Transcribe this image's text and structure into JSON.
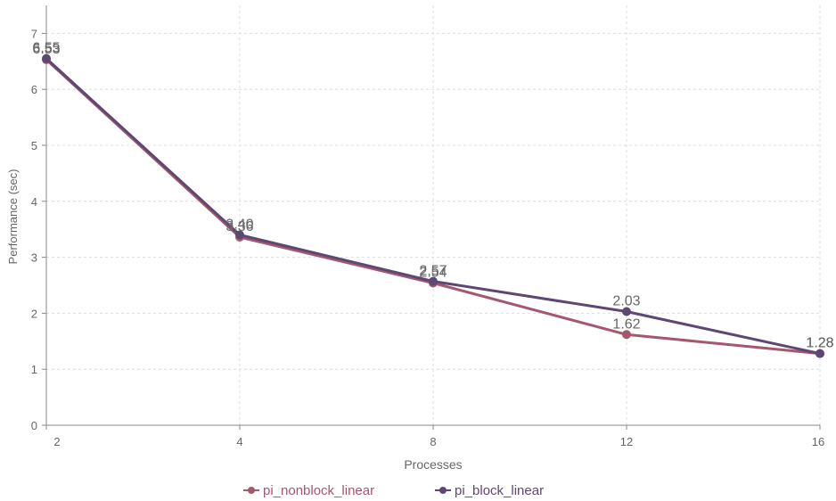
{
  "chart_data": {
    "type": "line",
    "title": "",
    "xlabel": "Processes",
    "ylabel": "Performance (sec)",
    "categories": [
      "2",
      "4",
      "8",
      "12",
      "16"
    ],
    "ylim": [
      0,
      7.5
    ],
    "y_ticks": [
      0,
      1,
      2,
      3,
      4,
      5,
      6,
      7
    ],
    "grid": true,
    "legend_position": "bottom-center",
    "series": [
      {
        "name": "pi_nonblock_linear",
        "values": [
          6.53,
          3.36,
          2.54,
          1.62,
          1.28
        ],
        "labels": [
          "6.53",
          "3.36",
          "2.54",
          "1.62",
          "1.28"
        ],
        "color": "#A5576E"
      },
      {
        "name": "pi_block_linear",
        "values": [
          6.55,
          3.4,
          2.57,
          2.03,
          1.28
        ],
        "labels": [
          "6.55",
          "3.40",
          "2.57",
          "2.03",
          "1.28"
        ],
        "color": "#5D4874"
      }
    ]
  }
}
